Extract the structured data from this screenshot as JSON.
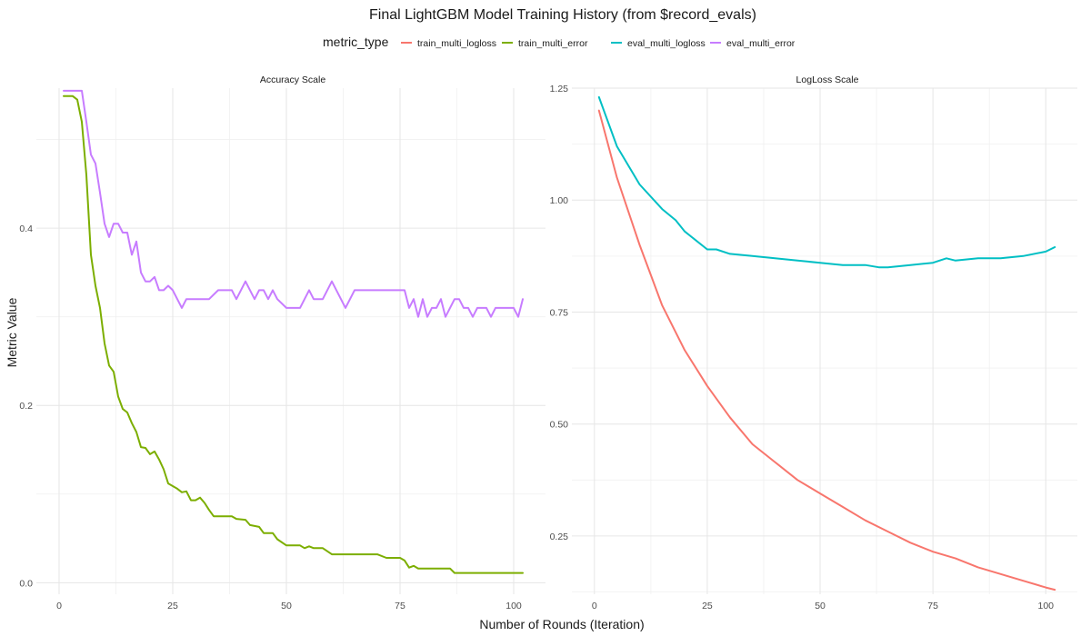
{
  "chart_data": {
    "type": "line",
    "title": "Final LightGBM Model Training History (from $record_evals)",
    "xlabel": "Number of Rounds (Iteration)",
    "ylabel": "Metric Value",
    "legend": {
      "title": "metric_type",
      "placement": "top",
      "entries": [
        {
          "name": "train_multi_logloss",
          "color": "#F8766D"
        },
        {
          "name": "train_multi_error",
          "color": "#7CAE00"
        },
        {
          "name": "eval_multi_logloss",
          "color": "#00BFC4"
        },
        {
          "name": "eval_multi_error",
          "color": "#C77CFF"
        }
      ]
    },
    "grid": true,
    "panels": [
      {
        "strip": "Accuracy Scale",
        "xlim": [
          -5,
          107
        ],
        "ylim": [
          -0.013,
          0.558
        ],
        "xticks": [
          0,
          25,
          50,
          75,
          100
        ],
        "yticks": [
          0.0,
          0.2,
          0.4
        ],
        "ytick_labels": [
          "0.0",
          "0.2",
          "0.4"
        ],
        "series": [
          {
            "name": "train_multi_error",
            "color": "#7CAE00",
            "points": [
              [
                1,
                0.549
              ],
              [
                3,
                0.549
              ],
              [
                4,
                0.545
              ],
              [
                5,
                0.52
              ],
              [
                6,
                0.46
              ],
              [
                7,
                0.37
              ],
              [
                8,
                0.335
              ],
              [
                9,
                0.31
              ],
              [
                10,
                0.27
              ],
              [
                11,
                0.245
              ],
              [
                12,
                0.238
              ],
              [
                13,
                0.21
              ],
              [
                14,
                0.196
              ],
              [
                15,
                0.192
              ],
              [
                16,
                0.18
              ],
              [
                17,
                0.17
              ],
              [
                18,
                0.153
              ],
              [
                19,
                0.152
              ],
              [
                20,
                0.145
              ],
              [
                21,
                0.148
              ],
              [
                22,
                0.139
              ],
              [
                23,
                0.128
              ],
              [
                24,
                0.112
              ],
              [
                26,
                0.106
              ],
              [
                27,
                0.102
              ],
              [
                28,
                0.103
              ],
              [
                29,
                0.093
              ],
              [
                30,
                0.093
              ],
              [
                31,
                0.096
              ],
              [
                32,
                0.09
              ],
              [
                33,
                0.082
              ],
              [
                34,
                0.075
              ],
              [
                38,
                0.075
              ],
              [
                39,
                0.072
              ],
              [
                41,
                0.071
              ],
              [
                42,
                0.065
              ],
              [
                44,
                0.063
              ],
              [
                45,
                0.056
              ],
              [
                47,
                0.056
              ],
              [
                48,
                0.049
              ],
              [
                50,
                0.042
              ],
              [
                53,
                0.042
              ],
              [
                54,
                0.039
              ],
              [
                55,
                0.041
              ],
              [
                56,
                0.039
              ],
              [
                58,
                0.039
              ],
              [
                60,
                0.032
              ],
              [
                70,
                0.032
              ],
              [
                72,
                0.028
              ],
              [
                75,
                0.028
              ],
              [
                76,
                0.025
              ],
              [
                77,
                0.017
              ],
              [
                78,
                0.019
              ],
              [
                79,
                0.016
              ],
              [
                86,
                0.016
              ],
              [
                87,
                0.011
              ],
              [
                102,
                0.011
              ]
            ]
          },
          {
            "name": "eval_multi_error",
            "color": "#C77CFF",
            "points": [
              [
                1,
                0.555
              ],
              [
                5,
                0.555
              ],
              [
                6,
                0.52
              ],
              [
                7,
                0.483
              ],
              [
                8,
                0.473
              ],
              [
                9,
                0.44
              ],
              [
                10,
                0.405
              ],
              [
                11,
                0.39
              ],
              [
                12,
                0.405
              ],
              [
                13,
                0.405
              ],
              [
                14,
                0.395
              ],
              [
                15,
                0.395
              ],
              [
                16,
                0.37
              ],
              [
                17,
                0.385
              ],
              [
                18,
                0.35
              ],
              [
                19,
                0.34
              ],
              [
                20,
                0.34
              ],
              [
                21,
                0.345
              ],
              [
                22,
                0.33
              ],
              [
                23,
                0.33
              ],
              [
                24,
                0.335
              ],
              [
                25,
                0.33
              ],
              [
                26,
                0.32
              ],
              [
                27,
                0.31
              ],
              [
                28,
                0.32
              ],
              [
                33,
                0.32
              ],
              [
                35,
                0.33
              ],
              [
                38,
                0.33
              ],
              [
                39,
                0.32
              ],
              [
                41,
                0.34
              ],
              [
                43,
                0.32
              ],
              [
                44,
                0.33
              ],
              [
                45,
                0.33
              ],
              [
                46,
                0.32
              ],
              [
                47,
                0.33
              ],
              [
                48,
                0.32
              ],
              [
                50,
                0.31
              ],
              [
                53,
                0.31
              ],
              [
                54,
                0.32
              ],
              [
                55,
                0.33
              ],
              [
                56,
                0.32
              ],
              [
                58,
                0.32
              ],
              [
                60,
                0.34
              ],
              [
                61,
                0.33
              ],
              [
                62,
                0.32
              ],
              [
                63,
                0.31
              ],
              [
                65,
                0.33
              ],
              [
                76,
                0.33
              ],
              [
                77,
                0.31
              ],
              [
                78,
                0.32
              ],
              [
                79,
                0.3
              ],
              [
                80,
                0.32
              ],
              [
                81,
                0.3
              ],
              [
                82,
                0.31
              ],
              [
                83,
                0.31
              ],
              [
                84,
                0.32
              ],
              [
                85,
                0.3
              ],
              [
                86,
                0.31
              ],
              [
                87,
                0.32
              ],
              [
                88,
                0.32
              ],
              [
                89,
                0.31
              ],
              [
                90,
                0.31
              ],
              [
                91,
                0.3
              ],
              [
                92,
                0.31
              ],
              [
                94,
                0.31
              ],
              [
                95,
                0.3
              ],
              [
                96,
                0.31
              ],
              [
                100,
                0.31
              ],
              [
                101,
                0.3
              ],
              [
                102,
                0.32
              ]
            ]
          }
        ]
      },
      {
        "strip": "LogLoss Scale",
        "xlim": [
          -5,
          107
        ],
        "ylim": [
          0.12,
          1.25
        ],
        "xticks": [
          0,
          25,
          50,
          75,
          100
        ],
        "yticks": [
          0.25,
          0.5,
          0.75,
          1.0,
          1.25
        ],
        "ytick_labels": [
          "0.25",
          "0.50",
          "0.75",
          "1.00",
          "1.25"
        ],
        "series": [
          {
            "name": "train_multi_logloss",
            "color": "#F8766D",
            "points": [
              [
                1,
                1.2
              ],
              [
                5,
                1.05
              ],
              [
                10,
                0.9
              ],
              [
                15,
                0.765
              ],
              [
                20,
                0.665
              ],
              [
                25,
                0.585
              ],
              [
                30,
                0.515
              ],
              [
                35,
                0.455
              ],
              [
                40,
                0.415
              ],
              [
                45,
                0.375
              ],
              [
                50,
                0.345
              ],
              [
                55,
                0.315
              ],
              [
                60,
                0.285
              ],
              [
                65,
                0.26
              ],
              [
                70,
                0.235
              ],
              [
                75,
                0.215
              ],
              [
                80,
                0.2
              ],
              [
                85,
                0.18
              ],
              [
                90,
                0.165
              ],
              [
                95,
                0.15
              ],
              [
                100,
                0.135
              ],
              [
                102,
                0.13
              ]
            ]
          },
          {
            "name": "eval_multi_logloss",
            "color": "#00BFC4",
            "points": [
              [
                1,
                1.23
              ],
              [
                5,
                1.12
              ],
              [
                10,
                1.035
              ],
              [
                15,
                0.98
              ],
              [
                18,
                0.955
              ],
              [
                20,
                0.93
              ],
              [
                25,
                0.89
              ],
              [
                27,
                0.89
              ],
              [
                30,
                0.88
              ],
              [
                35,
                0.875
              ],
              [
                40,
                0.87
              ],
              [
                45,
                0.865
              ],
              [
                50,
                0.86
              ],
              [
                55,
                0.855
              ],
              [
                60,
                0.855
              ],
              [
                63,
                0.85
              ],
              [
                65,
                0.85
              ],
              [
                70,
                0.855
              ],
              [
                75,
                0.86
              ],
              [
                78,
                0.87
              ],
              [
                80,
                0.865
              ],
              [
                85,
                0.87
              ],
              [
                90,
                0.87
              ],
              [
                95,
                0.875
              ],
              [
                100,
                0.885
              ],
              [
                102,
                0.895
              ]
            ]
          }
        ]
      }
    ]
  }
}
